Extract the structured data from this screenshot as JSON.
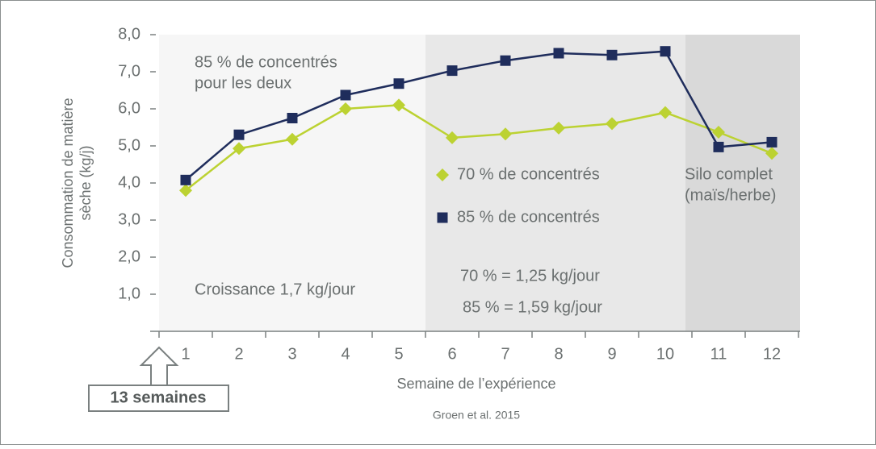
{
  "chart_data": {
    "type": "line",
    "y_label": [
      "Consommation de matière",
      "sèche (kg/j)"
    ],
    "x_label": "Semaine de l’expérience",
    "source": "Groen et al. 2015",
    "callout": "13 semaines",
    "annotations": [
      "85 % de concentrés",
      "pour les deux",
      "Croissance 1,7 kg/jour",
      "70 % = 1,25 kg/jour",
      "85 % = 1,59 kg/jour",
      "Silo complet",
      "(maïs/herbe)"
    ],
    "categories": [
      "1",
      "2",
      "3",
      "4",
      "5",
      "6",
      "7",
      "8",
      "9",
      "10",
      "11",
      "12"
    ],
    "series": [
      {
        "name": "70 % de concentrés",
        "color": "#bcd232",
        "marker": "diamond",
        "values": [
          3.8,
          4.93,
          5.18,
          6.0,
          6.1,
          5.22,
          5.32,
          5.48,
          5.6,
          5.9,
          5.37,
          4.8
        ]
      },
      {
        "name": "85 % de concentrés",
        "color": "#1f2d5c",
        "marker": "square",
        "values": [
          4.08,
          5.3,
          5.75,
          6.37,
          6.68,
          7.03,
          7.3,
          7.5,
          7.45,
          7.55,
          4.97,
          5.1
        ]
      }
    ],
    "ylim": [
      0,
      8
    ],
    "yticks": [
      {
        "value": 1,
        "label": "1,0"
      },
      {
        "value": 2,
        "label": "2,0"
      },
      {
        "value": 3,
        "label": "3,0"
      },
      {
        "value": 4,
        "label": "4,0"
      },
      {
        "value": 5,
        "label": "5,0"
      },
      {
        "value": 6,
        "label": "6,0"
      },
      {
        "value": 7,
        "label": "7,0"
      },
      {
        "value": 8,
        "label": "8,0"
      }
    ]
  }
}
